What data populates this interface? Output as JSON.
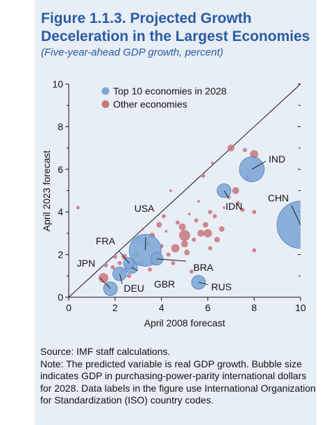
{
  "figure": {
    "title": "Figure 1.1.3. Projected Growth Deceleration in the Largest Economies",
    "subtitle": "(Five-year-ahead GDP growth, percent)",
    "source": "Source: IMF staff calculations.",
    "note": "Note: The predicted variable is real GDP growth. Bubble size indicates GDP in purchasing-power-parity international dollars for 2028. Data labels in the figure use International Organization for Standardization (ISO) country codes."
  },
  "chart_data": {
    "type": "scatter",
    "xlabel": "April 2008 forecast",
    "ylabel": "April 2023 forecast",
    "xlim": [
      0,
      10
    ],
    "ylim": [
      0,
      10
    ],
    "x_ticks": [
      0,
      2,
      4,
      6,
      8,
      10
    ],
    "y_ticks": [
      0,
      2,
      4,
      6,
      8,
      10
    ],
    "reference_line": "45-degree line",
    "legend_position": "top-left",
    "colors": {
      "top10": "#7fa7d6",
      "top10_edge": "#4f7fbf",
      "other": "#c8747c"
    },
    "series": [
      {
        "name": "Top 10 economies in 2028",
        "points": [
          {
            "label": "CHN",
            "x": 10.0,
            "y": 3.4,
            "size": 34
          },
          {
            "label": "USA",
            "x": 3.3,
            "y": 2.2,
            "size": 23
          },
          {
            "label": "IND",
            "x": 7.9,
            "y": 6.0,
            "size": 18
          },
          {
            "label": "JPN",
            "x": 1.8,
            "y": 0.4,
            "size": 10
          },
          {
            "label": "DEU",
            "x": 2.2,
            "y": 1.1,
            "size": 10
          },
          {
            "label": "RUS",
            "x": 5.6,
            "y": 0.7,
            "size": 10
          },
          {
            "label": "IDN",
            "x": 6.7,
            "y": 5.0,
            "size": 10
          },
          {
            "label": "BRA",
            "x": 3.8,
            "y": 1.8,
            "size": 9
          },
          {
            "label": "GBR",
            "x": 2.7,
            "y": 1.4,
            "size": 9
          },
          {
            "label": "FRA",
            "x": 2.6,
            "y": 1.6,
            "size": 8
          }
        ]
      },
      {
        "name": "Other economies",
        "points": [
          {
            "x": 0.4,
            "y": 4.2,
            "size": 2.5
          },
          {
            "x": 1.5,
            "y": 0.9,
            "size": 7
          },
          {
            "x": 1.6,
            "y": 1.5,
            "size": 3
          },
          {
            "x": 1.9,
            "y": 1.4,
            "size": 3
          },
          {
            "x": 2.0,
            "y": 1.9,
            "size": 3
          },
          {
            "x": 2.2,
            "y": 1.6,
            "size": 3
          },
          {
            "x": 2.3,
            "y": 1.2,
            "size": 3
          },
          {
            "x": 2.4,
            "y": 1.9,
            "size": 4
          },
          {
            "x": 2.6,
            "y": 1.0,
            "size": 3
          },
          {
            "x": 2.9,
            "y": 2.0,
            "size": 4
          },
          {
            "x": 3.0,
            "y": 2.7,
            "size": 3
          },
          {
            "x": 3.1,
            "y": 1.6,
            "size": 4
          },
          {
            "x": 3.2,
            "y": 3.2,
            "size": 2
          },
          {
            "x": 3.4,
            "y": 2.5,
            "size": 3
          },
          {
            "x": 3.5,
            "y": 1.3,
            "size": 3
          },
          {
            "x": 3.6,
            "y": 2.9,
            "size": 4
          },
          {
            "x": 3.7,
            "y": 1.7,
            "size": 6
          },
          {
            "x": 3.9,
            "y": 3.4,
            "size": 4
          },
          {
            "x": 4.0,
            "y": 2.4,
            "size": 3
          },
          {
            "x": 4.1,
            "y": 3.8,
            "size": 3
          },
          {
            "x": 4.2,
            "y": 3.1,
            "size": 2
          },
          {
            "x": 4.3,
            "y": 2.0,
            "size": 3
          },
          {
            "x": 4.4,
            "y": 5.0,
            "size": 2
          },
          {
            "x": 4.5,
            "y": 1.6,
            "size": 3
          },
          {
            "x": 4.6,
            "y": 2.3,
            "size": 6
          },
          {
            "x": 4.7,
            "y": 3.5,
            "size": 3
          },
          {
            "x": 4.9,
            "y": 3.3,
            "size": 5
          },
          {
            "x": 5.0,
            "y": 2.5,
            "size": 5
          },
          {
            "x": 5.0,
            "y": 2.9,
            "size": 8
          },
          {
            "x": 5.1,
            "y": 2.1,
            "size": 4
          },
          {
            "x": 5.2,
            "y": 3.9,
            "size": 2
          },
          {
            "x": 5.3,
            "y": 1.2,
            "size": 3
          },
          {
            "x": 5.4,
            "y": 2.7,
            "size": 3
          },
          {
            "x": 5.5,
            "y": 3.6,
            "size": 3
          },
          {
            "x": 5.6,
            "y": 4.5,
            "size": 2
          },
          {
            "x": 5.7,
            "y": 3.0,
            "size": 5
          },
          {
            "x": 5.8,
            "y": 5.7,
            "size": 3
          },
          {
            "x": 5.9,
            "y": 3.4,
            "size": 4
          },
          {
            "x": 6.0,
            "y": 3.0,
            "size": 6
          },
          {
            "x": 6.1,
            "y": 4.0,
            "size": 3
          },
          {
            "x": 6.1,
            "y": 2.3,
            "size": 3
          },
          {
            "x": 6.2,
            "y": 6.3,
            "size": 2
          },
          {
            "x": 6.3,
            "y": 3.8,
            "size": 3
          },
          {
            "x": 6.4,
            "y": 2.7,
            "size": 4
          },
          {
            "x": 6.6,
            "y": 3.2,
            "size": 4
          },
          {
            "x": 6.7,
            "y": 4.2,
            "size": 2
          },
          {
            "x": 6.9,
            "y": 4.7,
            "size": 3
          },
          {
            "x": 7.0,
            "y": 7.0,
            "size": 5
          },
          {
            "x": 7.2,
            "y": 5.0,
            "size": 5
          },
          {
            "x": 7.3,
            "y": 4.4,
            "size": 3
          },
          {
            "x": 7.5,
            "y": 4.1,
            "size": 3
          },
          {
            "x": 7.6,
            "y": 6.9,
            "size": 3
          },
          {
            "x": 7.7,
            "y": 5.6,
            "size": 3
          },
          {
            "x": 8.0,
            "y": 2.2,
            "size": 3
          },
          {
            "x": 8.0,
            "y": 6.7,
            "size": 6
          },
          {
            "x": 8.0,
            "y": 4.0,
            "size": 3
          }
        ]
      }
    ]
  }
}
